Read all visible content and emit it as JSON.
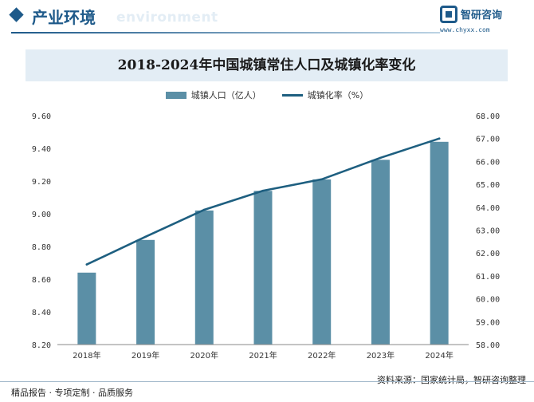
{
  "header": {
    "section_title": "产业环境",
    "section_subtitle": "environment",
    "brand_name": "智研咨询",
    "brand_url": "www.chyxx.com"
  },
  "chart_data": {
    "type": "bar",
    "title": "2018-2024年中国城镇常住人口及城镇化率变化",
    "categories": [
      "2018年",
      "2019年",
      "2020年",
      "2021年",
      "2022年",
      "2023年",
      "2024年"
    ],
    "series": [
      {
        "name": "城镇人口（亿人）",
        "type": "bar",
        "axis": "left",
        "color": "#5b8fa6",
        "values": [
          8.64,
          8.84,
          9.02,
          9.14,
          9.21,
          9.33,
          9.44
        ]
      },
      {
        "name": "城镇化率（%）",
        "type": "line",
        "axis": "right",
        "color": "#1e5f80",
        "values": [
          61.5,
          62.71,
          63.89,
          64.72,
          65.22,
          66.16,
          67.0
        ]
      }
    ],
    "y_left": {
      "min": 8.2,
      "max": 9.6,
      "ticks": [
        "9.60",
        "9.40",
        "9.20",
        "9.00",
        "8.80",
        "8.60",
        "8.40",
        "8.20"
      ]
    },
    "y_right": {
      "min": 58.0,
      "max": 68.0,
      "ticks": [
        "68.00",
        "67.00",
        "66.00",
        "65.00",
        "64.00",
        "63.00",
        "62.00",
        "61.00",
        "60.00",
        "59.00",
        "58.00"
      ]
    },
    "grid": false,
    "legend_position": "top-center"
  },
  "footer": {
    "left": "精品报告 · 专项定制 · 品质服务",
    "source": "资料来源：国家统计局，智研咨询整理"
  }
}
